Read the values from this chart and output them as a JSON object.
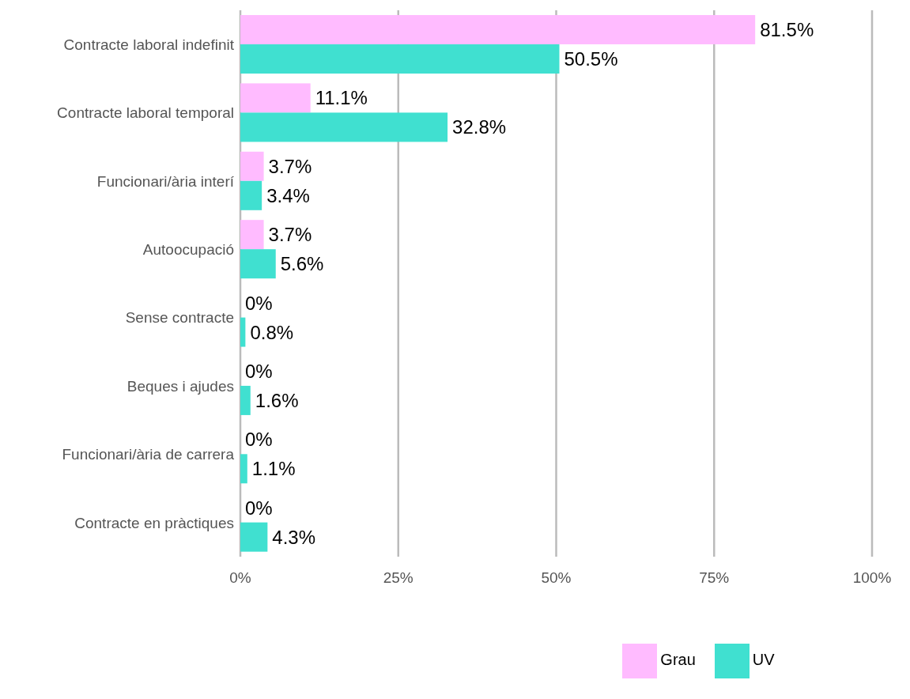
{
  "chart_data": {
    "type": "bar",
    "orientation": "horizontal",
    "categories": [
      "Contracte laboral indefinit",
      "Contracte laboral temporal",
      "Funcionari/ària interí",
      "Autoocupació",
      "Sense contracte",
      "Beques i ajudes",
      "Funcionari/ària de carrera",
      "Contracte en pràctiques"
    ],
    "series": [
      {
        "name": "Grau",
        "color": "#ffbbff",
        "values": [
          81.5,
          11.1,
          3.7,
          3.7,
          0,
          0,
          0,
          0
        ],
        "value_labels": [
          "81.5%",
          "11.1%",
          "3.7%",
          "3.7%",
          "0%",
          "0%",
          "0%",
          "0%"
        ]
      },
      {
        "name": "UV",
        "color": "#40e0d0",
        "values": [
          50.5,
          32.8,
          3.4,
          5.6,
          0.8,
          1.6,
          1.1,
          4.3
        ],
        "value_labels": [
          "50.5%",
          "32.8%",
          "3.4%",
          "5.6%",
          "0.8%",
          "1.6%",
          "1.1%",
          "4.3%"
        ]
      }
    ],
    "xlim": [
      0,
      100
    ],
    "xticks": [
      {
        "value": 0,
        "label": "0%"
      },
      {
        "value": 25,
        "label": "25%"
      },
      {
        "value": 50,
        "label": "50%"
      },
      {
        "value": 75,
        "label": "75%"
      },
      {
        "value": 100,
        "label": "100%"
      }
    ],
    "grid": "x",
    "legend": "bottom"
  }
}
